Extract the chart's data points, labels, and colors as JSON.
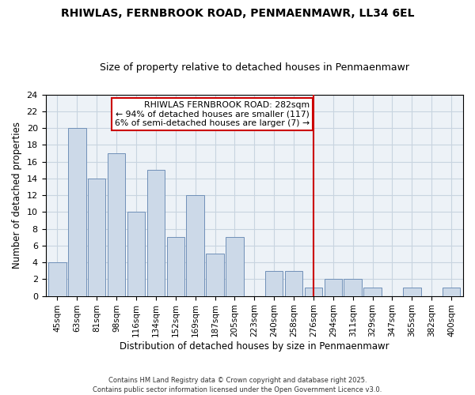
{
  "title": "RHIWLAS, FERNBROOK ROAD, PENMAENMAWR, LL34 6EL",
  "subtitle": "Size of property relative to detached houses in Penmaenmawr",
  "xlabel": "Distribution of detached houses by size in Penmaenmawr",
  "ylabel": "Number of detached properties",
  "bar_labels": [
    "45sqm",
    "63sqm",
    "81sqm",
    "98sqm",
    "116sqm",
    "134sqm",
    "152sqm",
    "169sqm",
    "187sqm",
    "205sqm",
    "223sqm",
    "240sqm",
    "258sqm",
    "276sqm",
    "294sqm",
    "311sqm",
    "329sqm",
    "347sqm",
    "365sqm",
    "382sqm",
    "400sqm"
  ],
  "bar_values": [
    4,
    20,
    14,
    17,
    10,
    15,
    7,
    12,
    5,
    7,
    0,
    3,
    3,
    1,
    2,
    2,
    1,
    0,
    1,
    0,
    1
  ],
  "bar_color": "#ccd9e8",
  "bar_edge_color": "#7090b8",
  "ylim": [
    0,
    24
  ],
  "yticks": [
    0,
    2,
    4,
    6,
    8,
    10,
    12,
    14,
    16,
    18,
    20,
    22,
    24
  ],
  "grid_color": "#c8d4e0",
  "background_color": "#edf2f7",
  "title_fontsize": 10,
  "subtitle_fontsize": 9,
  "annotation_text": "RHIWLAS FERNBROOK ROAD: 282sqm\n← 94% of detached houses are smaller (117)\n6% of semi-detached houses are larger (7) →",
  "vline_color": "#cc0000",
  "vline_x_index": 13,
  "footer_text": "Contains HM Land Registry data © Crown copyright and database right 2025.\nContains public sector information licensed under the Open Government Licence v3.0."
}
